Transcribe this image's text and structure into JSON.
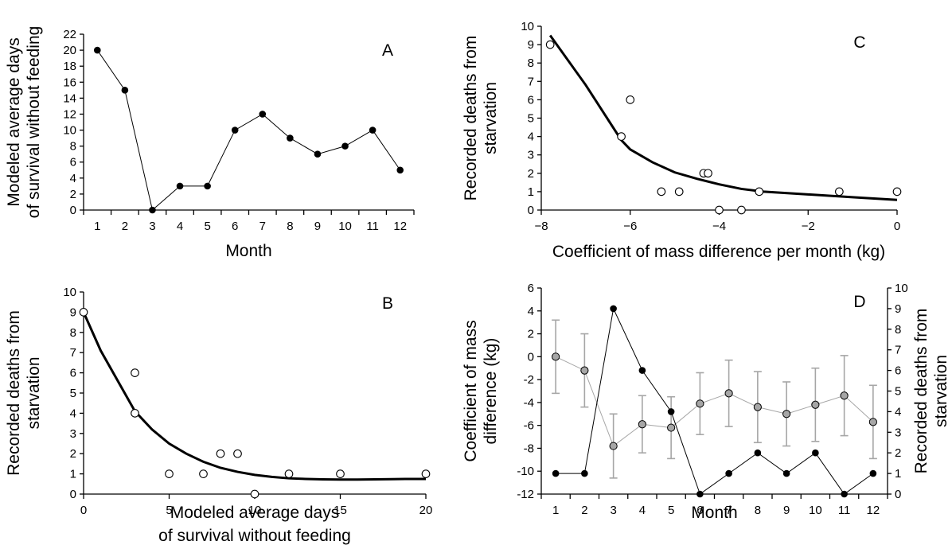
{
  "chart_data": [
    {
      "panel": "A",
      "type": "line",
      "title": "",
      "panel_label": "A",
      "xlabel": "Month",
      "ylabel": "Modeled average days of survival without feeding",
      "ylabel_lines": [
        "Modeled average days",
        "of survival without feeding"
      ],
      "categories": [
        "1",
        "2",
        "3",
        "4",
        "5",
        "6",
        "7",
        "8",
        "9",
        "10",
        "11",
        "12"
      ],
      "xlim": [
        0.5,
        12.5
      ],
      "ylim": [
        0,
        22
      ],
      "yticks": [
        0,
        2,
        4,
        6,
        8,
        10,
        12,
        14,
        16,
        18,
        20,
        22
      ],
      "series": [
        {
          "values": [
            20,
            15,
            0,
            3,
            3,
            10,
            12,
            9,
            7,
            8,
            10,
            5
          ],
          "marker": "filled-circle",
          "color": "#000000"
        }
      ]
    },
    {
      "panel": "B",
      "type": "scatter",
      "title": "",
      "panel_label": "B",
      "xlabel": "Modeled average days of survival without feeding",
      "xlabel_lines": [
        "Modeled average days",
        "of survival without feeding"
      ],
      "ylabel": "Recorded deaths from starvation",
      "ylabel_lines": [
        "Recorded deaths from",
        "starvation"
      ],
      "xlim": [
        0,
        20
      ],
      "ylim": [
        0,
        10
      ],
      "xticks": [
        0,
        5,
        10,
        15,
        20
      ],
      "yticks": [
        0,
        1,
        2,
        3,
        4,
        5,
        6,
        7,
        8,
        9,
        10
      ],
      "points": [
        {
          "x": 0,
          "y": 9
        },
        {
          "x": 3,
          "y": 6
        },
        {
          "x": 3,
          "y": 4
        },
        {
          "x": 5,
          "y": 1
        },
        {
          "x": 7,
          "y": 1
        },
        {
          "x": 8,
          "y": 2
        },
        {
          "x": 9,
          "y": 2
        },
        {
          "x": 10,
          "y": 0
        },
        {
          "x": 12,
          "y": 1
        },
        {
          "x": 15,
          "y": 1
        },
        {
          "x": 20,
          "y": 1
        }
      ],
      "fit_curve": {
        "x": [
          0,
          1,
          2,
          3,
          4,
          5,
          6,
          7,
          8,
          9,
          10,
          11,
          12,
          13,
          14,
          15,
          16,
          17,
          18,
          19,
          20
        ],
        "y": [
          9.0,
          7.1,
          5.6,
          4.1,
          3.2,
          2.5,
          2.0,
          1.6,
          1.3,
          1.1,
          0.95,
          0.85,
          0.78,
          0.75,
          0.73,
          0.72,
          0.72,
          0.73,
          0.74,
          0.75,
          0.75
        ]
      }
    },
    {
      "panel": "C",
      "type": "scatter",
      "title": "",
      "panel_label": "C",
      "xlabel": "Coefficient of mass difference per month (kg)",
      "ylabel": "Recorded deaths from starvation",
      "ylabel_lines": [
        "Recorded deaths from",
        "starvation"
      ],
      "xlim": [
        -8,
        0
      ],
      "ylim": [
        0,
        10
      ],
      "xticks": [
        -8,
        -6,
        -4,
        -2,
        0
      ],
      "xticklabels": [
        "−8",
        "−6",
        "−4",
        "−2",
        "0"
      ],
      "yticks": [
        0,
        1,
        2,
        3,
        4,
        5,
        6,
        7,
        8,
        9,
        10
      ],
      "points": [
        {
          "x": -7.8,
          "y": 9
        },
        {
          "x": -6.2,
          "y": 4
        },
        {
          "x": -6.0,
          "y": 6
        },
        {
          "x": -5.3,
          "y": 1
        },
        {
          "x": -4.9,
          "y": 1
        },
        {
          "x": -4.35,
          "y": 2
        },
        {
          "x": -4.25,
          "y": 2
        },
        {
          "x": -4.0,
          "y": 0
        },
        {
          "x": -3.5,
          "y": 0
        },
        {
          "x": -3.1,
          "y": 1
        },
        {
          "x": -1.3,
          "y": 1
        },
        {
          "x": 0,
          "y": 1
        }
      ],
      "fit_curve": {
        "x": [
          -7.8,
          -7.0,
          -6.2,
          -6.0,
          -5.5,
          -5.0,
          -4.5,
          -4.0,
          -3.5,
          -3.0,
          -2.0,
          -1.0,
          0
        ],
        "y": [
          9.5,
          6.8,
          3.8,
          3.3,
          2.6,
          2.05,
          1.7,
          1.4,
          1.15,
          1.0,
          0.85,
          0.7,
          0.55
        ]
      }
    },
    {
      "panel": "D",
      "type": "line",
      "title": "",
      "panel_label": "D",
      "xlabel": "Month",
      "ylabel": "Coefficient of mass difference (kg)",
      "ylabel_lines": [
        "Coefficient of mass",
        "difference (kg)"
      ],
      "ylabel_right": "Recorded deaths from starvation",
      "ylabel_right_lines": [
        "Recorded deaths from",
        "starvation"
      ],
      "categories": [
        "1",
        "2",
        "3",
        "4",
        "5",
        "6",
        "7",
        "8",
        "9",
        "10",
        "11",
        "12"
      ],
      "xlim": [
        0.5,
        12.5
      ],
      "ylim": [
        -12,
        6
      ],
      "yticks": [
        -12,
        -10,
        -8,
        -6,
        -4,
        -2,
        0,
        2,
        4,
        6
      ],
      "ylim_right": [
        0,
        10
      ],
      "yticks_right": [
        0,
        1,
        2,
        3,
        4,
        5,
        6,
        7,
        8,
        9,
        10
      ],
      "series": [
        {
          "axis": "left",
          "marker": "gray-circle",
          "color": "#999999",
          "values": [
            0.0,
            -1.2,
            -7.8,
            -5.9,
            -6.2,
            -4.1,
            -3.2,
            -4.4,
            -5.0,
            -4.2,
            -3.4,
            -5.7
          ],
          "error": [
            3.2,
            3.2,
            2.8,
            2.5,
            2.7,
            2.7,
            2.9,
            3.1,
            2.8,
            3.2,
            3.5,
            3.2
          ]
        },
        {
          "axis": "right",
          "marker": "filled-circle",
          "color": "#000000",
          "values": [
            1,
            1,
            9,
            6,
            4,
            0,
            1,
            2,
            1,
            2,
            0,
            1
          ]
        }
      ]
    }
  ]
}
